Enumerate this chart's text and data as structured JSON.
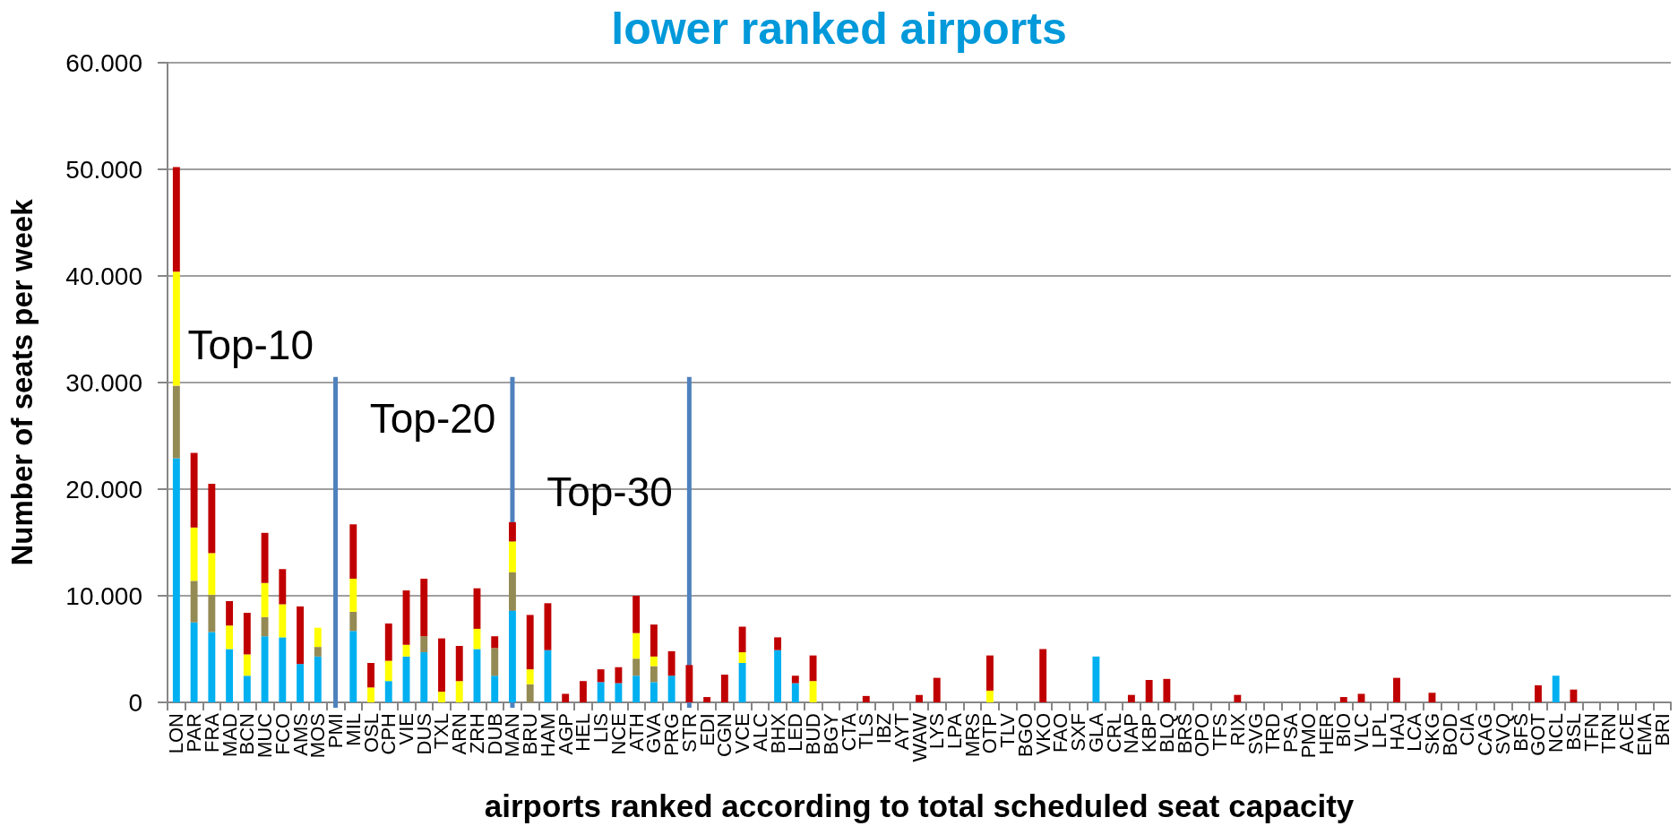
{
  "chart_data": {
    "type": "bar",
    "title": "lower ranked airports",
    "xlabel": "airports ranked according to total scheduled seat capacity",
    "ylabel": "Number of seats per week",
    "categories": [
      "LON",
      "PAR",
      "FRA",
      "MAD",
      "BCN",
      "MUC",
      "FCO",
      "AMS",
      "MOS",
      "PMI",
      "MIL",
      "OSL",
      "CPH",
      "VIE",
      "DUS",
      "TXL",
      "ARN",
      "ZRH",
      "DUB",
      "MAN",
      "BRU",
      "HAM",
      "AGP",
      "HEL",
      "LIS",
      "NCE",
      "ATH",
      "GVA",
      "PRG",
      "STR",
      "EDI",
      "CGN",
      "VCE",
      "ALC",
      "BHX",
      "LED",
      "BUD",
      "BGY",
      "CTA",
      "TLS",
      "IBZ",
      "AYT",
      "WAW",
      "LYS",
      "LPA",
      "MRS",
      "OTP",
      "TLV",
      "BGO",
      "VKO",
      "FAO",
      "SXF",
      "GLA",
      "CRL",
      "NAP",
      "KBP",
      "BLQ",
      "BRS",
      "OPO",
      "TFS",
      "RIX",
      "SVG",
      "TRD",
      "PSA",
      "PMO",
      "HER",
      "BIO",
      "VLC",
      "LPL",
      "HAJ",
      "LCA",
      "SKG",
      "BOD",
      "CIA",
      "CAG",
      "SVQ",
      "BFS",
      "GOT",
      "NCL",
      "BSL",
      "TFN",
      "TRN",
      "ACE",
      "EMA",
      "BRI"
    ],
    "stacked": true,
    "series": [
      {
        "color": "#00b0f0",
        "values": [
          22900,
          7500,
          6600,
          5000,
          2500,
          6200,
          6100,
          3600,
          4300,
          null,
          6700,
          null,
          2000,
          4300,
          4700,
          null,
          null,
          5000,
          2500,
          8600,
          null,
          4900,
          null,
          null,
          1900,
          1800,
          2500,
          1900,
          2500,
          null,
          null,
          null,
          3700,
          null,
          4900,
          1800,
          null,
          null,
          null,
          null,
          null,
          null,
          null,
          null,
          null,
          null,
          null,
          null,
          null,
          null,
          null,
          null,
          4300,
          null,
          null,
          null,
          null,
          null,
          null,
          null,
          null,
          null,
          null,
          null,
          null,
          null,
          null,
          null,
          null,
          null,
          null,
          null,
          null,
          null,
          null,
          null,
          null,
          null,
          2500,
          null,
          null,
          null,
          null,
          null,
          null
        ]
      },
      {
        "color": "#948a54",
        "values": [
          6800,
          3900,
          3500,
          null,
          null,
          1800,
          null,
          null,
          900,
          null,
          1800,
          null,
          null,
          null,
          1500,
          null,
          null,
          null,
          2600,
          3600,
          1700,
          null,
          null,
          null,
          null,
          null,
          1600,
          1500,
          null,
          null,
          null,
          null,
          null,
          null,
          null,
          null,
          null,
          null,
          null,
          null,
          null,
          null,
          null,
          null,
          null,
          null,
          null,
          null,
          null,
          null,
          null,
          null,
          null,
          null,
          null,
          null,
          null,
          null,
          null,
          null,
          null,
          null,
          null,
          null,
          null,
          null,
          null,
          null,
          null,
          null,
          null,
          null,
          null,
          null,
          null,
          null,
          null,
          null,
          null,
          null,
          null,
          null,
          null,
          null,
          null
        ]
      },
      {
        "color": "#ffff00",
        "values": [
          10700,
          5000,
          3900,
          2200,
          2000,
          3200,
          3100,
          null,
          1800,
          null,
          3100,
          1400,
          1900,
          1100,
          null,
          1000,
          2000,
          1900,
          null,
          2900,
          1400,
          null,
          null,
          null,
          null,
          null,
          2400,
          900,
          null,
          null,
          null,
          null,
          1000,
          null,
          null,
          null,
          2000,
          null,
          null,
          null,
          null,
          null,
          null,
          null,
          null,
          null,
          1100,
          null,
          null,
          null,
          null,
          null,
          null,
          null,
          null,
          null,
          null,
          null,
          null,
          null,
          null,
          null,
          null,
          null,
          null,
          null,
          null,
          null,
          null,
          null,
          null,
          null,
          null,
          null,
          null,
          null,
          null,
          null,
          null,
          null,
          null,
          null,
          null,
          null,
          null
        ]
      },
      {
        "color": "#c00000",
        "values": [
          9800,
          7000,
          6500,
          2300,
          3900,
          4700,
          3300,
          5400,
          null,
          null,
          5100,
          2300,
          3500,
          5100,
          5400,
          5000,
          3300,
          3800,
          1100,
          1800,
          5100,
          4400,
          800,
          2000,
          1200,
          1500,
          3500,
          3000,
          2300,
          3500,
          500,
          2600,
          2400,
          null,
          1200,
          700,
          2400,
          null,
          null,
          600,
          null,
          null,
          700,
          2300,
          null,
          null,
          3300,
          null,
          null,
          5000,
          null,
          null,
          null,
          null,
          700,
          2100,
          2200,
          null,
          null,
          null,
          700,
          null,
          null,
          null,
          null,
          null,
          500,
          800,
          null,
          2300,
          null,
          900,
          null,
          null,
          null,
          null,
          null,
          1600,
          null,
          1200,
          null,
          null,
          null,
          null,
          null
        ]
      }
    ],
    "ylim": [
      0,
      60000
    ],
    "yticks": [
      0,
      {
        "value": 10000,
        "label": "10.000"
      },
      {
        "value": 20000,
        "label": "20.000"
      },
      {
        "value": 30000,
        "label": "30.000"
      },
      {
        "value": 40000,
        "label": "40.000"
      },
      {
        "value": 50000,
        "label": "50.000"
      },
      {
        "value": 60000,
        "label": "60.000"
      }
    ],
    "grid": "y",
    "ref_lines": [
      {
        "axis": "x",
        "value": "PMI",
        "label": "Top-10",
        "color": "#4f81bd"
      },
      {
        "axis": "x",
        "value": "MAN",
        "label": "Top-20",
        "color": "#4f81bd"
      },
      {
        "axis": "x",
        "value": "STR",
        "label": "Top-30",
        "color": "#4f81bd"
      }
    ]
  }
}
